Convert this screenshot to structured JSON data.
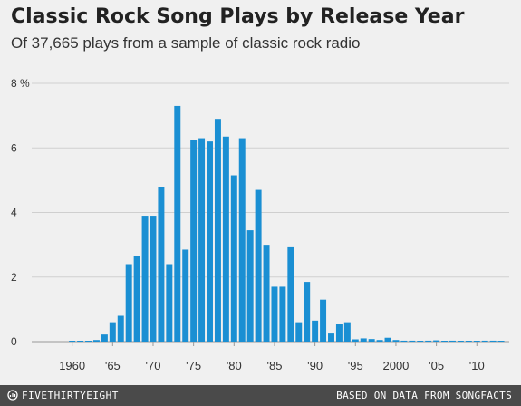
{
  "header": {
    "title": "Classic Rock Song Plays by Release Year",
    "subtitle": "Of 37,665 plays from a sample of classic rock radio"
  },
  "footer": {
    "brand": "FIVETHIRTYEIGHT",
    "brand_icon": "fivethirtyeight-logo-icon",
    "source": "BASED ON DATA FROM SONGFACTS"
  },
  "colors": {
    "bar": "#1a8fd3",
    "grid": "#cfcfcf",
    "background": "#f0f0f0",
    "footer": "#4a4a4a"
  },
  "chart_data": {
    "type": "bar",
    "title": "Classic Rock Song Plays by Release Year",
    "subtitle": "Of 37,665 plays from a sample of classic rock radio",
    "xlabel": "",
    "ylabel": "",
    "ylim": [
      0,
      8
    ],
    "xlim": [
      1955,
      2014
    ],
    "grid": true,
    "y_ticks": [
      {
        "value": 0,
        "label": "0"
      },
      {
        "value": 2,
        "label": "2"
      },
      {
        "value": 4,
        "label": "4"
      },
      {
        "value": 6,
        "label": "6"
      },
      {
        "value": 8,
        "label": "8 %"
      }
    ],
    "x_ticks": [
      {
        "value": 1960,
        "label": "1960"
      },
      {
        "value": 1965,
        "label": "'65"
      },
      {
        "value": 1970,
        "label": "'70"
      },
      {
        "value": 1975,
        "label": "'75"
      },
      {
        "value": 1980,
        "label": "'80"
      },
      {
        "value": 1985,
        "label": "'85"
      },
      {
        "value": 1990,
        "label": "'90"
      },
      {
        "value": 1995,
        "label": "'95"
      },
      {
        "value": 2000,
        "label": "2000"
      },
      {
        "value": 2005,
        "label": "'05"
      },
      {
        "value": 2010,
        "label": "'10"
      }
    ],
    "x": [
      1960,
      1961,
      1962,
      1963,
      1964,
      1965,
      1966,
      1967,
      1968,
      1969,
      1970,
      1971,
      1972,
      1973,
      1974,
      1975,
      1976,
      1977,
      1978,
      1979,
      1980,
      1981,
      1982,
      1983,
      1984,
      1985,
      1986,
      1987,
      1988,
      1989,
      1990,
      1991,
      1992,
      1993,
      1994,
      1995,
      1996,
      1997,
      1998,
      1999,
      2000,
      2001,
      2002,
      2003,
      2004,
      2005,
      2006,
      2007,
      2008,
      2009,
      2010,
      2011,
      2012,
      2013
    ],
    "values": [
      0.02,
      0.02,
      0.02,
      0.05,
      0.22,
      0.6,
      0.8,
      2.4,
      2.65,
      3.9,
      3.9,
      4.8,
      2.4,
      7.3,
      2.85,
      6.25,
      6.3,
      6.2,
      6.9,
      6.35,
      5.15,
      6.3,
      3.45,
      4.7,
      3.0,
      1.7,
      1.7,
      2.95,
      0.6,
      1.85,
      0.65,
      1.3,
      0.25,
      0.55,
      0.6,
      0.07,
      0.1,
      0.08,
      0.05,
      0.12,
      0.05,
      0.03,
      0.03,
      0.02,
      0.03,
      0.04,
      0.02,
      0.03,
      0.02,
      0.02,
      0.02,
      0.03,
      0.03,
      0.02
    ]
  }
}
